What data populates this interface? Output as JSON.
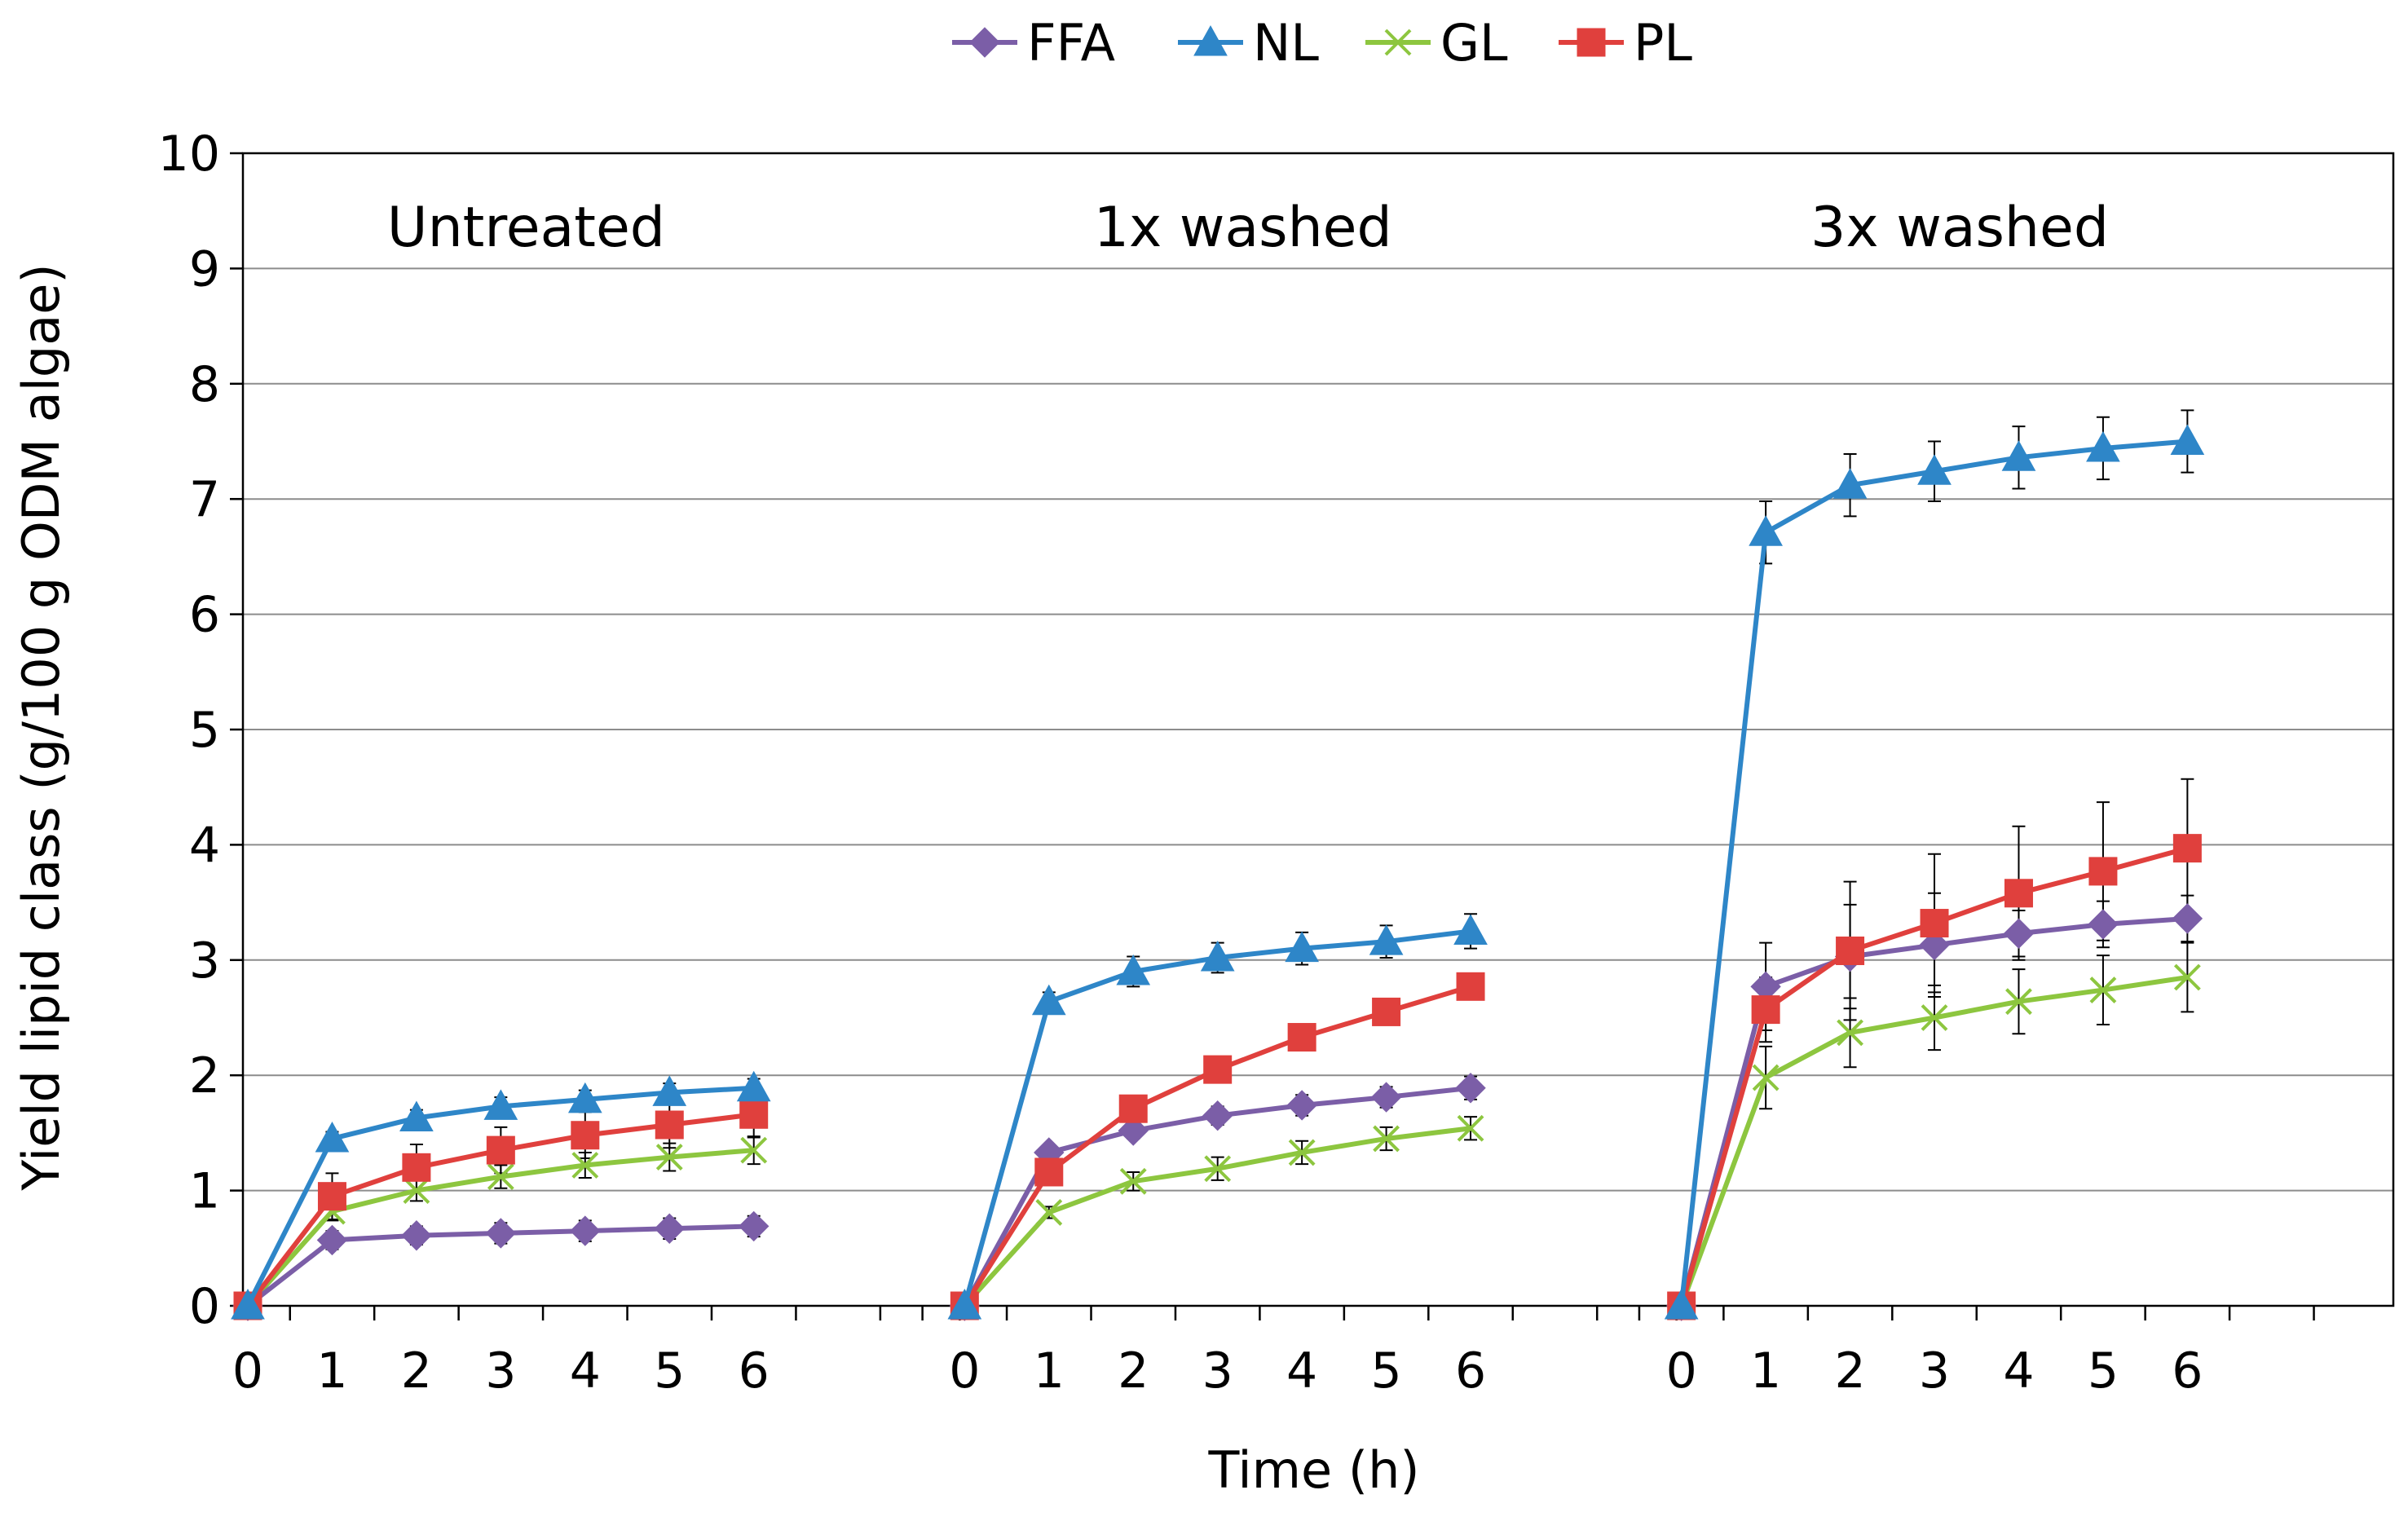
{
  "chart_data": {
    "type": "line",
    "title": "",
    "xlabel": "Time (h)",
    "ylabel": "Yield lipid class (g/100 g ODM algae)",
    "ylim": [
      0,
      10
    ],
    "yticks": [
      "0",
      "1",
      "2",
      "3",
      "4",
      "5",
      "6",
      "7",
      "8",
      "9",
      "10"
    ],
    "x": [
      0,
      1,
      2,
      3,
      4,
      5,
      6
    ],
    "x_tick_labels": [
      "0",
      "1",
      "2",
      "3",
      "4",
      "5",
      "6"
    ],
    "grid": true,
    "legend_position": "top-center",
    "series_meta": [
      {
        "name": "FFA",
        "color": "#7b5ea7",
        "marker": "diamond"
      },
      {
        "name": "NL",
        "color": "#2e86c8",
        "marker": "triangle"
      },
      {
        "name": "GL",
        "color": "#8dc63f",
        "marker": "x"
      },
      {
        "name": "PL",
        "color": "#e0403d",
        "marker": "square"
      }
    ],
    "groups": [
      {
        "label": "Untreated",
        "series": [
          {
            "name": "FFA",
            "values": [
              0,
              0.57,
              0.61,
              0.63,
              0.65,
              0.67,
              0.69
            ],
            "errors": [
              0,
              0.08,
              0.08,
              0.09,
              0.09,
              0.09,
              0.09
            ]
          },
          {
            "name": "NL",
            "values": [
              0,
              1.45,
              1.63,
              1.73,
              1.79,
              1.85,
              1.89
            ],
            "errors": [
              0,
              0.06,
              0.07,
              0.08,
              0.08,
              0.08,
              0.08
            ]
          },
          {
            "name": "GL",
            "values": [
              0,
              0.82,
              1.0,
              1.12,
              1.22,
              1.29,
              1.35
            ],
            "errors": [
              0,
              0.08,
              0.09,
              0.1,
              0.11,
              0.12,
              0.12
            ]
          },
          {
            "name": "PL",
            "values": [
              0,
              0.95,
              1.2,
              1.35,
              1.48,
              1.57,
              1.66
            ],
            "errors": [
              0,
              0.2,
              0.2,
              0.2,
              0.2,
              0.2,
              0.2
            ]
          }
        ]
      },
      {
        "label": "1x washed",
        "series": [
          {
            "name": "FFA",
            "values": [
              0,
              1.33,
              1.52,
              1.65,
              1.74,
              1.81,
              1.89
            ],
            "errors": [
              0,
              0.06,
              0.07,
              0.08,
              0.09,
              0.09,
              0.1
            ]
          },
          {
            "name": "NL",
            "values": [
              0,
              2.64,
              2.9,
              3.02,
              3.1,
              3.16,
              3.25
            ],
            "errors": [
              0,
              0.08,
              0.13,
              0.13,
              0.14,
              0.14,
              0.15
            ]
          },
          {
            "name": "GL",
            "values": [
              0,
              0.81,
              1.08,
              1.19,
              1.33,
              1.45,
              1.54
            ],
            "errors": [
              0,
              0.05,
              0.08,
              0.1,
              0.1,
              0.1,
              0.1
            ]
          },
          {
            "name": "PL",
            "values": [
              0,
              1.16,
              1.71,
              2.05,
              2.33,
              2.55,
              2.77
            ],
            "errors": [
              0,
              0.05,
              0.05,
              0.05,
              0.05,
              0.05,
              0.05
            ]
          }
        ]
      },
      {
        "label": "3x washed",
        "series": [
          {
            "name": "FFA",
            "values": [
              0,
              2.77,
              3.03,
              3.13,
              3.23,
              3.31,
              3.36
            ],
            "errors": [
              0,
              0.38,
              0.45,
              0.45,
              0.2,
              0.2,
              0.2
            ]
          },
          {
            "name": "NL",
            "values": [
              0,
              6.71,
              7.12,
              7.24,
              7.36,
              7.44,
              7.5
            ],
            "errors": [
              0,
              0.27,
              0.27,
              0.26,
              0.27,
              0.27,
              0.27
            ]
          },
          {
            "name": "GL",
            "values": [
              0,
              1.98,
              2.37,
              2.5,
              2.64,
              2.74,
              2.85
            ],
            "errors": [
              0,
              0.27,
              0.3,
              0.28,
              0.28,
              0.3,
              0.3
            ]
          },
          {
            "name": "PL",
            "values": [
              0,
              2.57,
              3.08,
              3.32,
              3.58,
              3.77,
              3.97
            ],
            "errors": [
              0,
              0.28,
              0.6,
              0.6,
              0.58,
              0.6,
              0.6
            ]
          }
        ]
      }
    ]
  }
}
